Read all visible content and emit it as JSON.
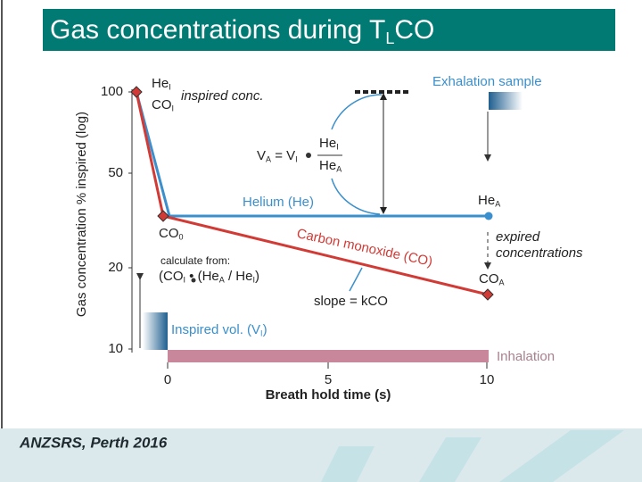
{
  "header": {
    "title": [
      "Gas concentrations during T",
      {
        "sub": "L"
      },
      "CO"
    ]
  },
  "footer": {
    "text": "ANZSRS, Perth 2016"
  },
  "diagram": {
    "y_axis": {
      "label": "Gas concentration % inspired (log)",
      "ticks": [
        "100",
        "50",
        "20",
        "10"
      ]
    },
    "x_axis": {
      "label": "Breath hold time (s)",
      "ticks": [
        "0",
        "5",
        "10"
      ]
    },
    "labels": [
      [
        "He",
        {
          "sub": "I"
        }
      ],
      [
        "CO",
        {
          "sub": "I"
        }
      ],
      [
        "inspired conc."
      ],
      [
        "Exhalation sample"
      ],
      [
        "V",
        {
          "sub": "A"
        },
        " = V",
        {
          "sub": "I"
        }
      ],
      [
        "He",
        {
          "sub": "I"
        }
      ],
      [
        "He",
        {
          "sub": "A"
        }
      ],
      [
        "Helium (He)"
      ],
      [
        "He",
        {
          "sub": "A"
        }
      ],
      [
        "CO",
        {
          "sub": "0"
        }
      ],
      [
        "Carbon monoxide (CO)"
      ],
      [
        "expired"
      ],
      [
        "concentrations"
      ],
      [
        "CO",
        {
          "sub": "A"
        }
      ],
      [
        "calculate from:"
      ],
      [
        "(CO",
        {
          "sub": "I"
        },
        " • (He",
        {
          "sub": "A"
        },
        " / He",
        {
          "sub": "I"
        },
        ")"
      ],
      [
        "slope = kCO"
      ],
      [
        "Inspired vol. (V",
        {
          "sub": "I"
        },
        ")"
      ],
      [
        "Inhalation"
      ]
    ]
  }
}
